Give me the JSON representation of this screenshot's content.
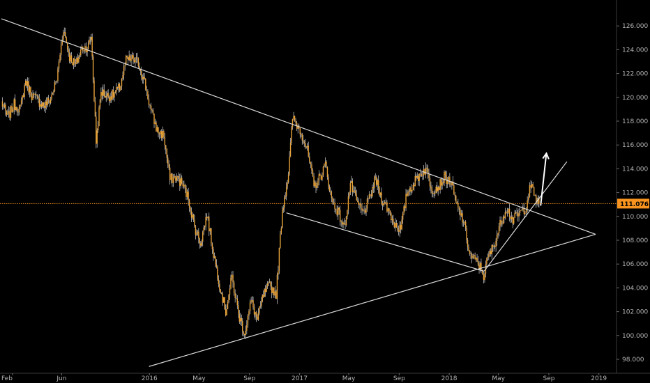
{
  "chart_data": {
    "type": "line",
    "title": "",
    "xlabel": "",
    "ylabel": "",
    "x_tick_labels": [
      "Feb",
      "Jun",
      "2016",
      "May",
      "Sep",
      "2017",
      "May",
      "Sep",
      "2018",
      "May",
      "Sep",
      "2019"
    ],
    "y_tick_labels": [
      "98.000",
      "100.000",
      "102.000",
      "104.000",
      "106.000",
      "108.000",
      "110.000",
      "112.000",
      "114.000",
      "116.000",
      "118.000",
      "120.000",
      "122.000",
      "124.000",
      "126.000"
    ],
    "ylim": [
      97.3,
      127.3
    ],
    "grid": false,
    "last_price": "111.076",
    "last_price_value": 111.076,
    "x_tick_dates": [
      "2015-02",
      "2015-06",
      "2016-01",
      "2016-05",
      "2016-09",
      "2017-01",
      "2017-05",
      "2017-09",
      "2018-01",
      "2018-05",
      "2018-09",
      "2019-01"
    ],
    "series": [
      {
        "values": [
          [
            "2015-01-05",
            119.6
          ],
          [
            "2015-01-20",
            118.3
          ],
          [
            "2015-02-05",
            119.4
          ],
          [
            "2015-02-20",
            119.0
          ],
          [
            "2015-03-05",
            121.4
          ],
          [
            "2015-03-20",
            120.2
          ],
          [
            "2015-04-05",
            119.7
          ],
          [
            "2015-04-20",
            119.3
          ],
          [
            "2015-05-05",
            119.9
          ],
          [
            "2015-05-20",
            121.5
          ],
          [
            "2015-06-05",
            125.8
          ],
          [
            "2015-06-20",
            123.4
          ],
          [
            "2015-07-05",
            122.7
          ],
          [
            "2015-07-20",
            124.1
          ],
          [
            "2015-08-05",
            124.3
          ],
          [
            "2015-08-12",
            125.2
          ],
          [
            "2015-08-24",
            116.3
          ],
          [
            "2015-09-05",
            120.5
          ],
          [
            "2015-09-20",
            120.1
          ],
          [
            "2015-10-05",
            120.2
          ],
          [
            "2015-10-20",
            120.8
          ],
          [
            "2015-11-05",
            123.1
          ],
          [
            "2015-11-20",
            123.2
          ],
          [
            "2015-12-05",
            122.9
          ],
          [
            "2015-12-20",
            121.3
          ],
          [
            "2016-01-05",
            118.8
          ],
          [
            "2016-01-20",
            117.2
          ],
          [
            "2016-02-05",
            116.8
          ],
          [
            "2016-02-20",
            113.1
          ],
          [
            "2016-03-05",
            113.3
          ],
          [
            "2016-03-20",
            112.8
          ],
          [
            "2016-04-05",
            111.5
          ],
          [
            "2016-04-20",
            109.1
          ],
          [
            "2016-05-05",
            107.8
          ],
          [
            "2016-05-20",
            110.2
          ],
          [
            "2016-06-05",
            106.9
          ],
          [
            "2016-06-20",
            104.3
          ],
          [
            "2016-07-05",
            102.0
          ],
          [
            "2016-07-20",
            104.9
          ],
          [
            "2016-08-05",
            101.8
          ],
          [
            "2016-08-20",
            100.2
          ],
          [
            "2016-09-05",
            102.9
          ],
          [
            "2016-09-20",
            101.3
          ],
          [
            "2016-10-05",
            103.4
          ],
          [
            "2016-10-20",
            104.2
          ],
          [
            "2016-11-05",
            103.5
          ],
          [
            "2016-11-20",
            110.6
          ],
          [
            "2016-12-05",
            113.6
          ],
          [
            "2016-12-15",
            118.3
          ],
          [
            "2017-01-05",
            117.1
          ],
          [
            "2017-01-20",
            115.5
          ],
          [
            "2017-02-05",
            112.5
          ],
          [
            "2017-02-20",
            113.3
          ],
          [
            "2017-03-05",
            114.4
          ],
          [
            "2017-03-20",
            111.4
          ],
          [
            "2017-04-05",
            110.4
          ],
          [
            "2017-04-20",
            109.0
          ],
          [
            "2017-05-05",
            112.8
          ],
          [
            "2017-05-20",
            111.2
          ],
          [
            "2017-06-05",
            110.3
          ],
          [
            "2017-06-20",
            111.4
          ],
          [
            "2017-07-05",
            113.2
          ],
          [
            "2017-07-20",
            111.5
          ],
          [
            "2017-08-05",
            110.6
          ],
          [
            "2017-08-20",
            109.4
          ],
          [
            "2017-09-05",
            108.9
          ],
          [
            "2017-09-20",
            112.0
          ],
          [
            "2017-10-05",
            112.7
          ],
          [
            "2017-10-20",
            113.5
          ],
          [
            "2017-11-05",
            114.0
          ],
          [
            "2017-11-20",
            112.3
          ],
          [
            "2017-12-05",
            112.5
          ],
          [
            "2017-12-20",
            113.3
          ],
          [
            "2018-01-05",
            112.9
          ],
          [
            "2018-01-20",
            110.8
          ],
          [
            "2018-02-05",
            109.6
          ],
          [
            "2018-02-20",
            106.8
          ],
          [
            "2018-03-05",
            106.3
          ],
          [
            "2018-03-20",
            105.6
          ],
          [
            "2018-03-26",
            105.0
          ],
          [
            "2018-04-05",
            106.5
          ],
          [
            "2018-04-20",
            107.6
          ],
          [
            "2018-05-05",
            109.3
          ],
          [
            "2018-05-20",
            110.8
          ],
          [
            "2018-06-05",
            109.7
          ],
          [
            "2018-06-20",
            110.2
          ],
          [
            "2018-07-05",
            110.7
          ],
          [
            "2018-07-19",
            112.6
          ],
          [
            "2018-08-01",
            111.4
          ],
          [
            "2018-08-08",
            111.076
          ]
        ]
      }
    ],
    "trendlines": [
      {
        "role": "upper-resistance",
        "from": [
          "2015-01-05",
          126.6
        ],
        "to": [
          "2018-12-24",
          108.5
        ]
      },
      {
        "role": "lower-support",
        "from": [
          "2015-12-31",
          97.4
        ],
        "to": [
          "2018-12-24",
          108.5
        ]
      },
      {
        "role": "inner-channel-top",
        "from": [
          "2016-11-30",
          110.3
        ],
        "to": [
          "2018-03-27",
          105.4
        ]
      },
      {
        "role": "steep-uptrend",
        "from": [
          "2018-03-27",
          105.4
        ],
        "to": [
          "2018-10-15",
          114.6
        ]
      }
    ],
    "forecast_arrow": {
      "from": [
        "2018-08-12",
        110.9
      ],
      "to": [
        "2018-08-26",
        115.3
      ]
    },
    "colors": {
      "background": "#000000",
      "candles": "#e8a33a",
      "wicks": "#d8d8d8",
      "trendlines": "#dcdcdc",
      "price_line": "#f7931e",
      "price_tag": "#f7931e",
      "axis_text": "#b4b4b4"
    }
  }
}
